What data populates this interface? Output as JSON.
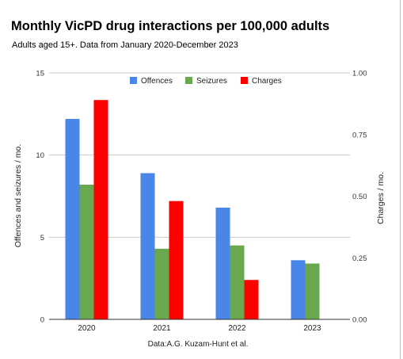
{
  "chart_data": {
    "type": "bar",
    "title": "Monthly VicPD drug interactions per 100,000 adults",
    "subtitle": "Adults aged 15+. Data from January 2020-December 2023",
    "xlabel": "Data:A.G. Kuzam-Hunt et al.",
    "ylabel_left": "Offences and seizures / mo.",
    "ylabel_right": "Charges / mo.",
    "categories": [
      "2020",
      "2021",
      "2022",
      "2023"
    ],
    "left_axis": {
      "range": [
        0,
        15
      ],
      "ticks": [
        "0",
        "5",
        "10",
        "15"
      ]
    },
    "right_axis": {
      "range": [
        0,
        1
      ],
      "ticks": [
        "0.00",
        "0.25",
        "0.50",
        "0.75",
        "1.00"
      ]
    },
    "grid": true,
    "legend_position": "top",
    "series": [
      {
        "name": "Offences",
        "axis": "left",
        "color": "#4a86e8",
        "values": [
          12.2,
          8.9,
          6.8,
          3.6
        ]
      },
      {
        "name": "Seizures",
        "axis": "left",
        "color": "#6aa84f",
        "values": [
          8.2,
          4.3,
          4.5,
          3.4
        ]
      },
      {
        "name": "Charges",
        "axis": "right",
        "color": "#ff0000",
        "values": [
          0.89,
          0.48,
          0.16,
          null
        ]
      }
    ]
  }
}
